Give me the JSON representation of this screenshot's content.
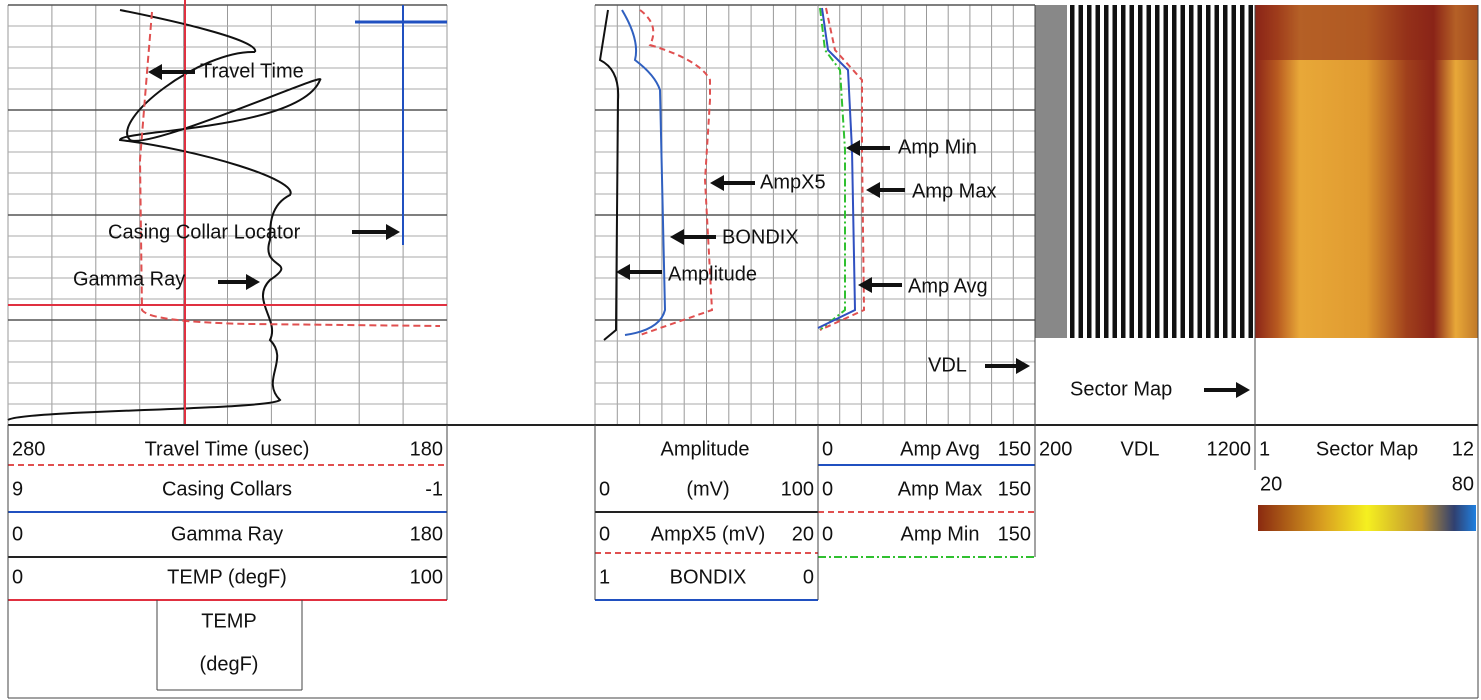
{
  "annotations": {
    "travel_time": "Travel Time",
    "casing_collar_locator": "Casing Collar Locator",
    "gamma_ray": "Gamma Ray",
    "amp_min": "Amp Min",
    "ampx5": "AmpX5",
    "amp_max": "Amp Max",
    "bondix": "BONDIX",
    "amplitude": "Amplitude",
    "amp_avg": "Amp Avg",
    "vdl": "VDL",
    "sector_map": "Sector Map"
  },
  "header": {
    "track1": {
      "rows": [
        [
          "280",
          "Travel Time (usec)",
          "180"
        ],
        [
          "9",
          "Casing Collars",
          "-1"
        ],
        [
          "0",
          "Gamma Ray",
          "180"
        ],
        [
          "0",
          "TEMP (degF)",
          "100"
        ]
      ],
      "temp_box": [
        "TEMP",
        "(degF)"
      ]
    },
    "track2": {
      "title": "Amplitude",
      "rows": [
        [
          "0",
          "(mV)",
          "100"
        ],
        [
          "0",
          "AmpX5 (mV)",
          "20"
        ],
        [
          "1",
          "BONDIX",
          "0"
        ]
      ]
    },
    "track3": {
      "rows": [
        [
          "0",
          "Amp Avg",
          "150"
        ],
        [
          "0",
          "Amp Max",
          "150"
        ],
        [
          "0",
          "Amp Min",
          "150"
        ]
      ]
    },
    "vdl": {
      "row": [
        "200",
        "VDL",
        "1200"
      ]
    },
    "sector_map": {
      "row": [
        "1",
        "Sector Map",
        "12"
      ],
      "scale": [
        "20",
        "80"
      ]
    }
  }
}
